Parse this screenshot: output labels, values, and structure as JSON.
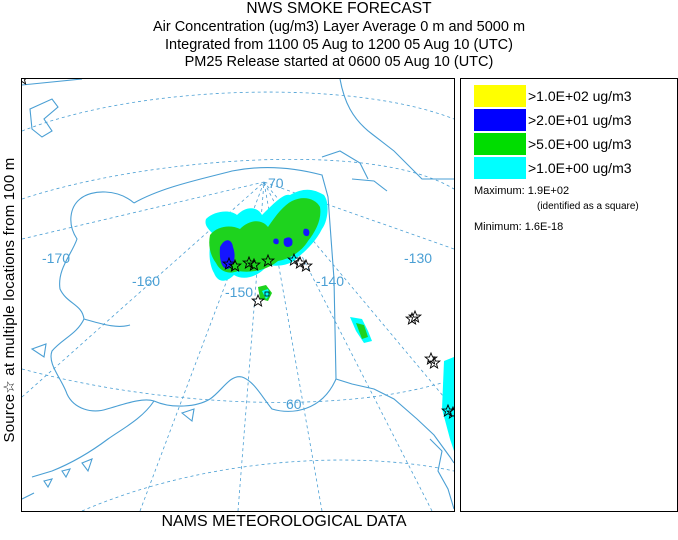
{
  "header": {
    "title": "NWS SMOKE FORECAST",
    "line2": "Air Concentration (ug/m3) Layer Average    0 m and  5000 m",
    "line3": "Integrated from 1100 05 Aug to 1200 05 Aug 10 (UTC)",
    "line4": "PM25 Release started at 0600 05 Aug 10 (UTC)"
  },
  "side_label": "Source☆   at multiple locations   from   100 m",
  "footer": "NAMS METEOROLOGICAL DATA",
  "map": {
    "lon_labels": [
      "-170",
      "-160",
      "-150",
      "-140",
      "-130"
    ],
    "lat_labels": [
      "70",
      "60"
    ],
    "colors": {
      "land_outline": "#4a9fd4",
      "graticule": "#4a9fd4",
      "cyan": "#00ffff",
      "green": "#1ed31e",
      "blue": "#1515ff"
    }
  },
  "legend": {
    "items": [
      {
        "label": ">1.0E+02 ug/m3",
        "color": "#ffff00"
      },
      {
        "label": ">2.0E+01 ug/m3",
        "color": "#0000ff"
      },
      {
        "label": ">5.0E+00 ug/m3",
        "color": "#00dd00"
      },
      {
        "label": ">1.0E+00 ug/m3",
        "color": "#00ffff"
      }
    ],
    "maximum": "Maximum: 1.9E+02",
    "max_note": "(identified as a square)",
    "minimum": "Minimum: 1.6E-18"
  }
}
